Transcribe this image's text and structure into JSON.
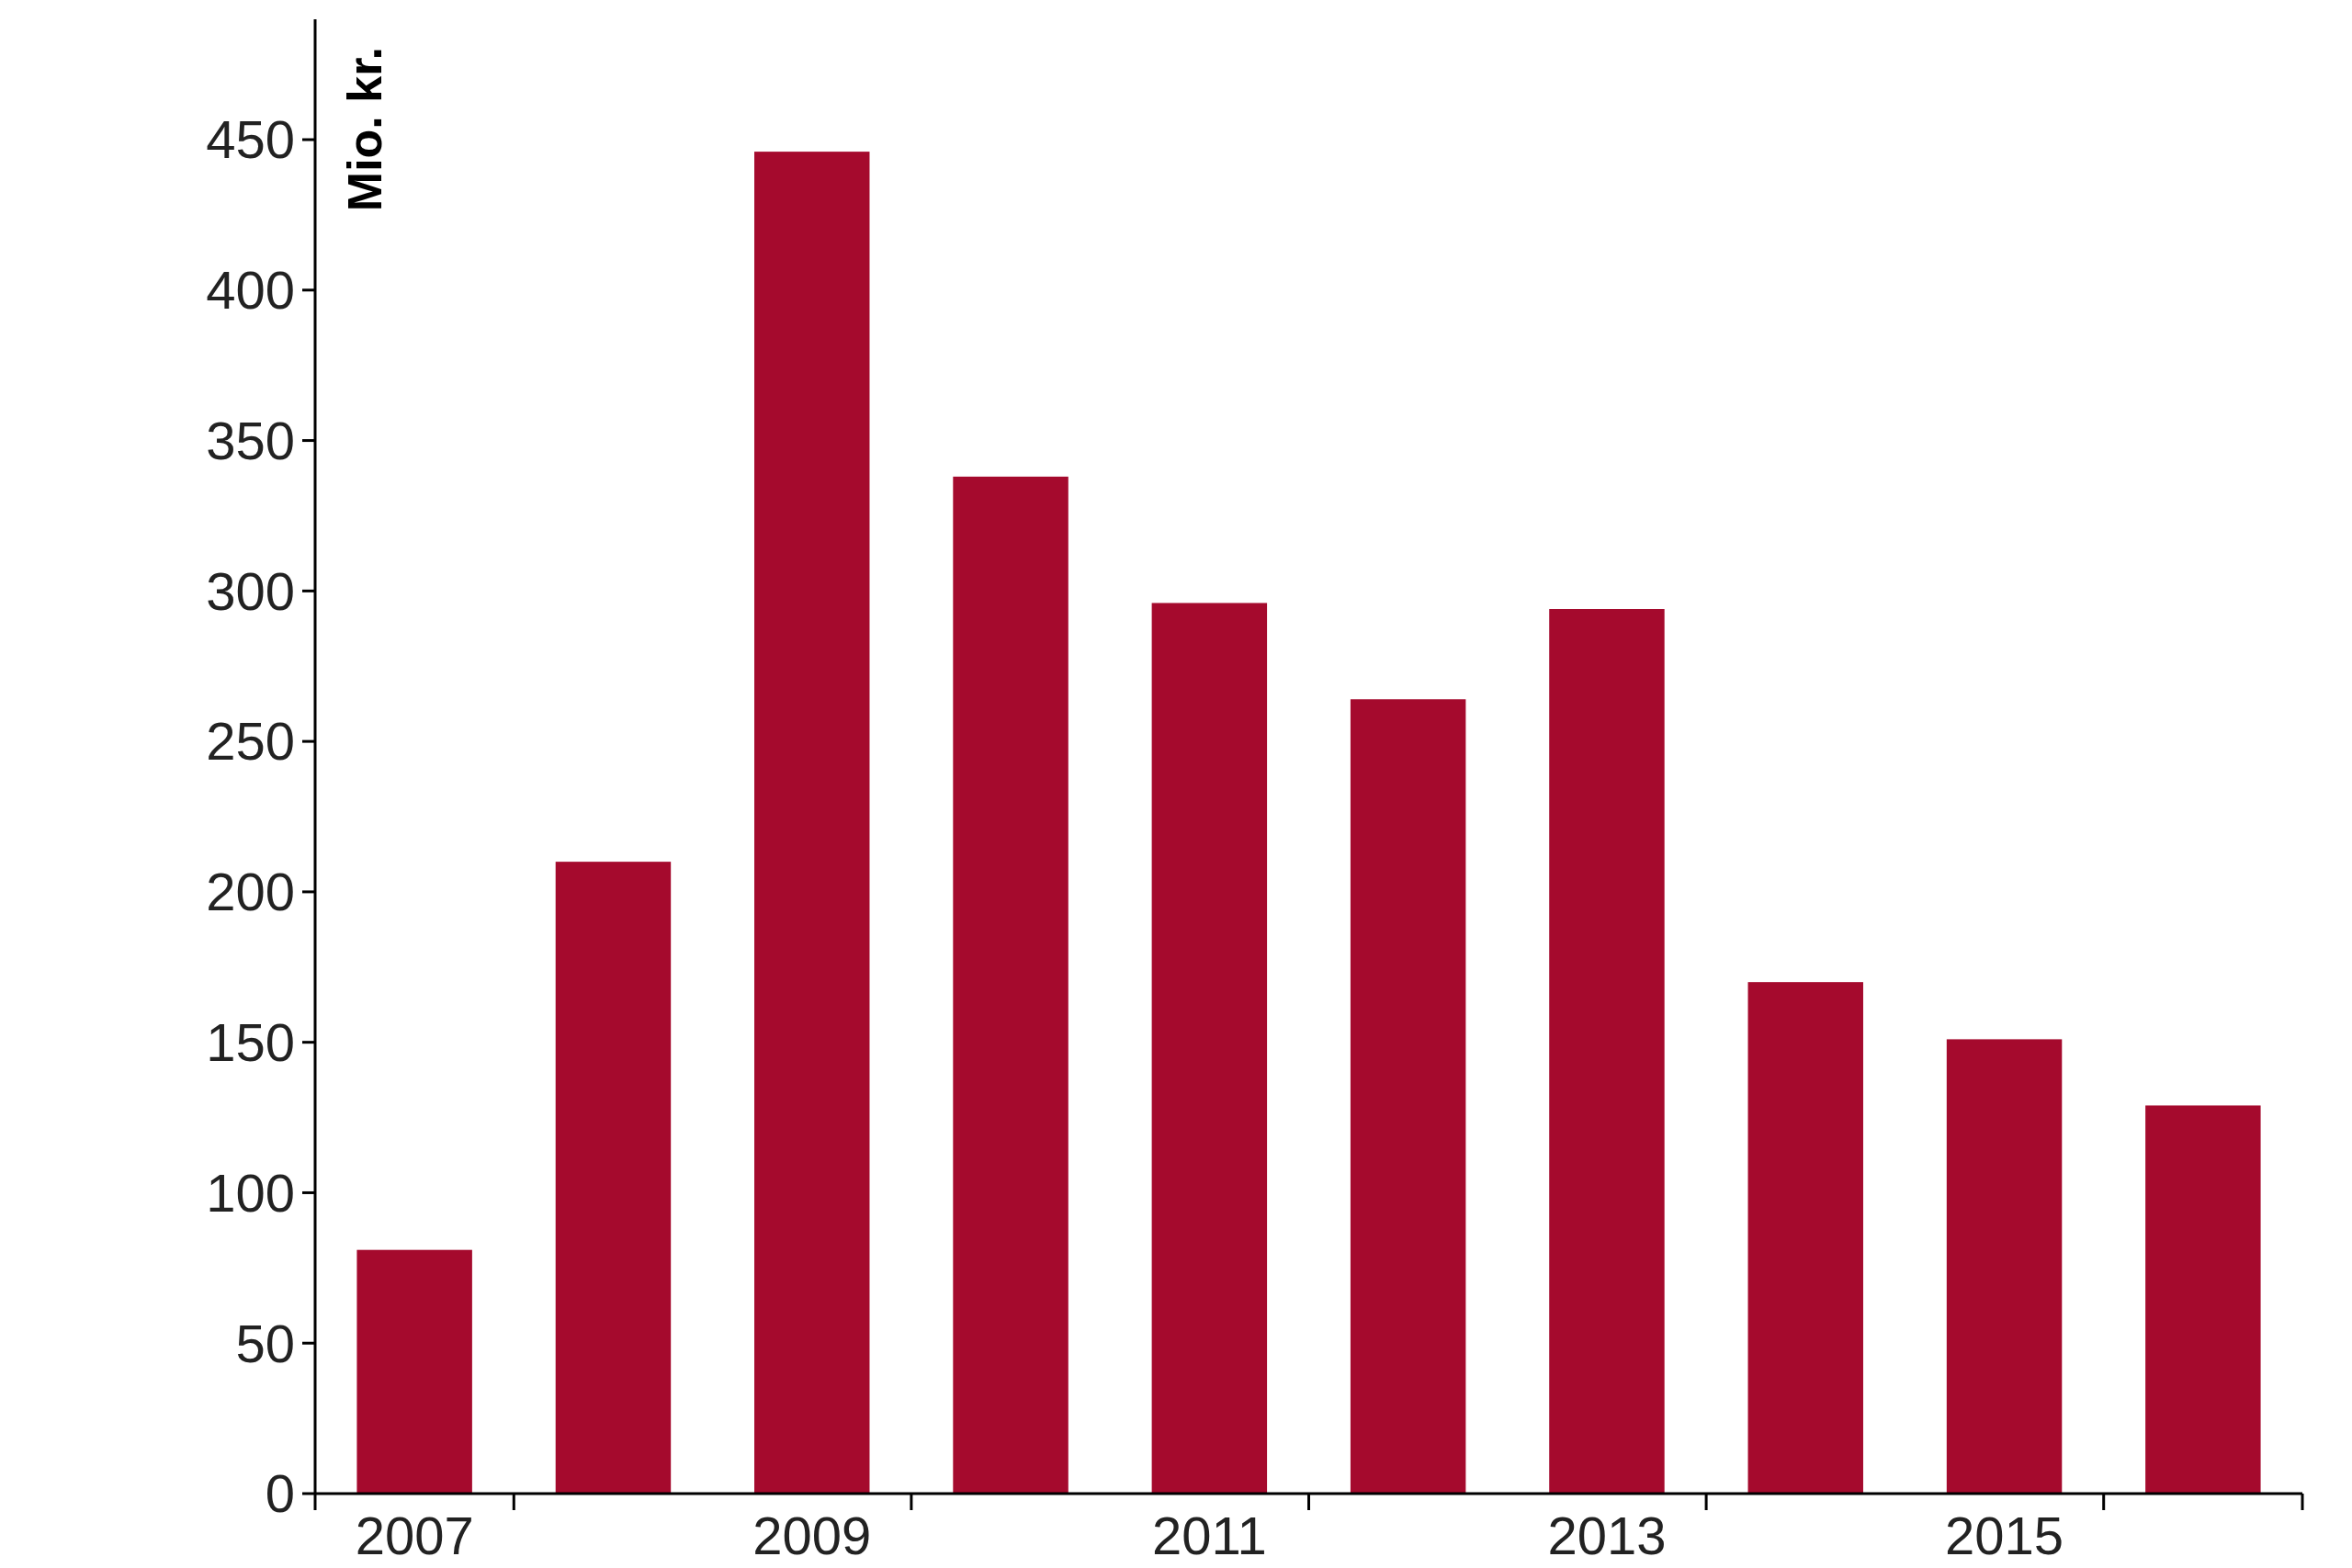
{
  "chart_data": {
    "type": "bar",
    "ylabel": "Mio. kr.",
    "categories": [
      "2007",
      null,
      "2009",
      null,
      "2011",
      null,
      "2013",
      null,
      "2015",
      null
    ],
    "values": [
      81,
      210,
      446,
      338,
      296,
      264,
      294,
      170,
      151,
      129
    ],
    "color": "#a50a2d",
    "ylim": [
      0,
      490
    ],
    "yticks": [
      0,
      50,
      100,
      150,
      200,
      250,
      300,
      350,
      400,
      450
    ],
    "grid": false
  }
}
